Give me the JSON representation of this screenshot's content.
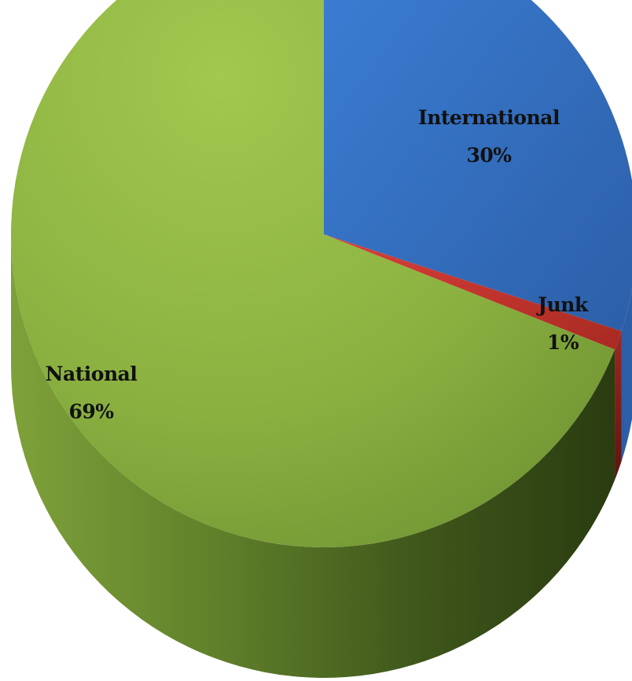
{
  "chart_data": {
    "type": "pie",
    "style": "3d",
    "title": "",
    "legend": "none",
    "slices": [
      {
        "label": "International",
        "value": 30,
        "display": "30%",
        "color": "#3a72c8"
      },
      {
        "label": "Junk",
        "value": 1,
        "display": "1%",
        "color": "#c0392b"
      },
      {
        "label": "National",
        "value": 69,
        "display": "69%",
        "color": "#8fb544"
      }
    ]
  }
}
